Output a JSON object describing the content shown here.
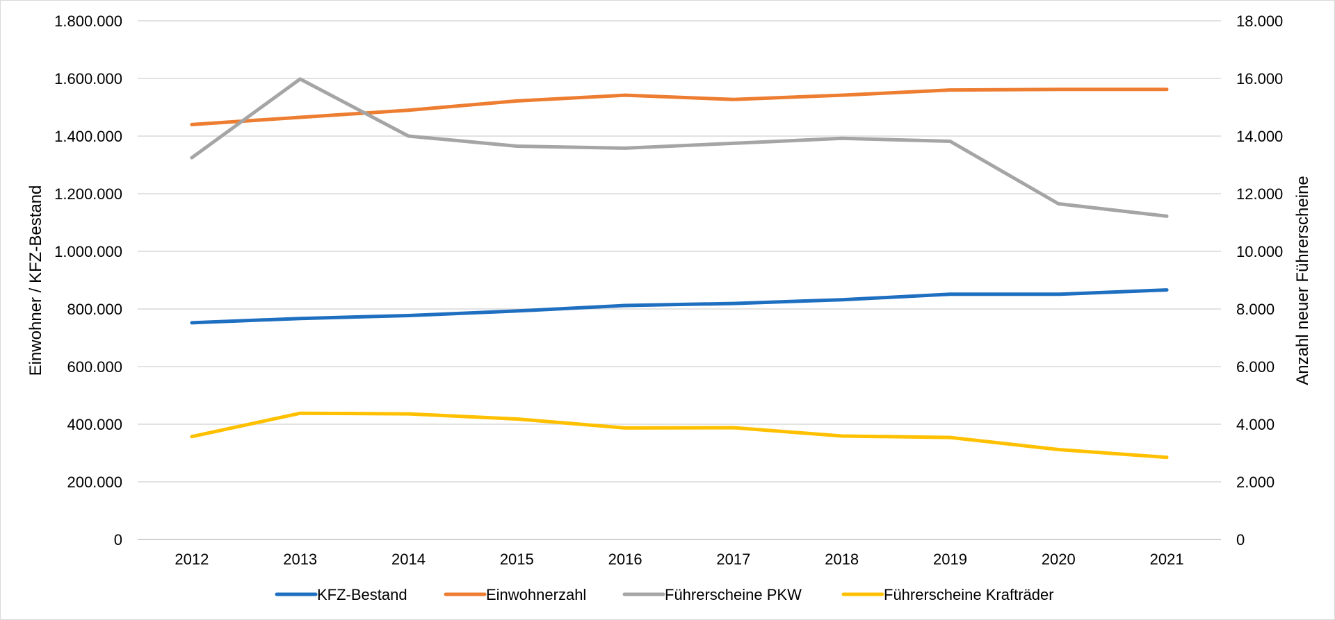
{
  "chart_data": {
    "type": "line",
    "categories": [
      "2012",
      "2013",
      "2014",
      "2015",
      "2016",
      "2017",
      "2018",
      "2019",
      "2020",
      "2021"
    ],
    "title": "",
    "ylabel_left": "Einwohner / KFZ-Bestand",
    "ylabel_right": "Anzahl neuer Führerscheine",
    "ylim_left": [
      0,
      1800000
    ],
    "ylim_right": [
      0,
      18000
    ],
    "yticks_left": [
      "0",
      "200.000",
      "400.000",
      "600.000",
      "800.000",
      "1.000.000",
      "1.200.000",
      "1.400.000",
      "1.600.000",
      "1.800.000"
    ],
    "yticks_right": [
      "0",
      "2.000",
      "4.000",
      "6.000",
      "8.000",
      "10.000",
      "12.000",
      "14.000",
      "16.000",
      "18.000"
    ],
    "grid": true,
    "legend_position": "bottom",
    "series": [
      {
        "name": "KFZ-Bestand",
        "axis": "left",
        "color": "#1f6fc1",
        "values": [
          752000,
          767000,
          777000,
          793000,
          812000,
          819000,
          832000,
          851000,
          851000,
          866000
        ]
      },
      {
        "name": "Einwohnerzahl",
        "axis": "left",
        "color": "#ed7d31",
        "values": [
          1440000,
          1465000,
          1490000,
          1522000,
          1542000,
          1527000,
          1542000,
          1560000,
          1562000,
          1562000
        ]
      },
      {
        "name": "Führerscheine PKW",
        "axis": "right",
        "color": "#a5a5a5",
        "values": [
          13250,
          15980,
          14000,
          13650,
          13580,
          13750,
          13920,
          13820,
          11650,
          11220
        ]
      },
      {
        "name": "Führerscheine Krafträder",
        "axis": "right",
        "color": "#ffc000",
        "values": [
          3570,
          4380,
          4360,
          4180,
          3870,
          3880,
          3590,
          3540,
          3120,
          2850
        ]
      }
    ]
  }
}
